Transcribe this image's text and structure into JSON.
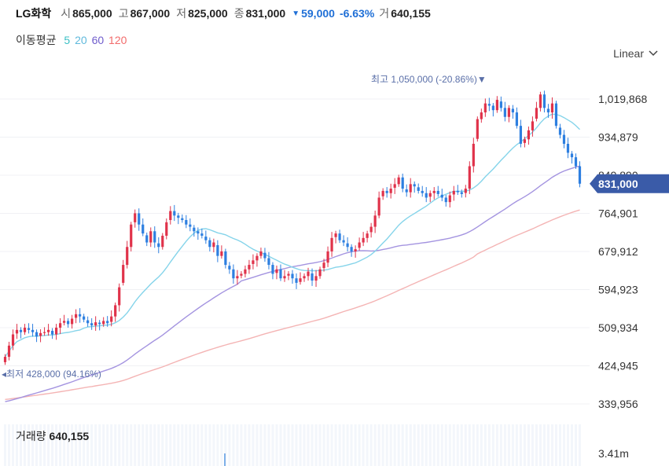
{
  "header": {
    "name": "LG화학",
    "open_label": "시",
    "open": "865,000",
    "high_label": "고",
    "high": "867,000",
    "low_label": "저",
    "low": "825,000",
    "close_label": "종",
    "close": "831,000",
    "change": "59,000",
    "change_pct": "-6.63%",
    "volume_label": "거",
    "volume": "640,155"
  },
  "ma_legend": {
    "label": "이동평균",
    "periods": [
      {
        "text": "5",
        "color": "#3cc0c5"
      },
      {
        "text": "20",
        "color": "#6ec6e6"
      },
      {
        "text": "60",
        "color": "#6f5ccc"
      },
      {
        "text": "120",
        "color": "#f26b6b"
      }
    ]
  },
  "scale_button": {
    "label": "Linear"
  },
  "volume_panel": {
    "label": "거래량",
    "value": "640,155",
    "axis_label": "3.41m"
  },
  "colors": {
    "up": "#e0324a",
    "down": "#2d7fe0",
    "ma5": "#3cc0c5",
    "ma20": "#85d4ea",
    "ma60": "#a494e0",
    "ma120": "#f4b4b4",
    "annotation": "#5a6fa8",
    "price_tag": "#3a5ba8"
  },
  "chart_data": {
    "type": "candlestick",
    "y_ticks": [
      "1,019,868",
      "934,879",
      "849,890",
      "764,901",
      "679,912",
      "594,923",
      "509,934",
      "424,945",
      "339,956"
    ],
    "y_tick_values": [
      1019868,
      934879,
      849890,
      764901,
      679912,
      594923,
      509934,
      424945,
      339956
    ],
    "max_annotation": "최고 1,050,000 (-20.86%)",
    "min_annotation": "최저 428,000 (94.16%)",
    "last_price": "831,000",
    "closes": [
      445000,
      470000,
      495000,
      505000,
      500000,
      510000,
      505000,
      500000,
      490000,
      498000,
      500000,
      505000,
      495000,
      510000,
      520000,
      525000,
      518000,
      530000,
      540000,
      535000,
      528000,
      520000,
      515000,
      522000,
      518000,
      525000,
      520000,
      535000,
      560000,
      600000,
      650000,
      690000,
      740000,
      765000,
      740000,
      720000,
      700000,
      725000,
      700000,
      690000,
      715000,
      745000,
      770000,
      760000,
      755000,
      750000,
      740000,
      735000,
      725000,
      720000,
      715000,
      705000,
      690000,
      700000,
      670000,
      680000,
      650000,
      640000,
      620000,
      625000,
      630000,
      640000,
      650000,
      660000,
      670000,
      680000,
      665000,
      650000,
      630000,
      640000,
      620000,
      625000,
      630000,
      620000,
      610000,
      620000,
      625000,
      635000,
      615000,
      625000,
      640000,
      655000,
      680000,
      710000,
      720000,
      705000,
      700000,
      690000,
      680000,
      685000,
      700000,
      710000,
      720000,
      735000,
      760000,
      800000,
      815000,
      810000,
      820000,
      830000,
      845000,
      820000,
      812000,
      830000,
      825000,
      815000,
      810000,
      800000,
      810000,
      815000,
      808000,
      800000,
      790000,
      805000,
      815000,
      812000,
      808000,
      820000,
      870000,
      920000,
      975000,
      990000,
      1010000,
      1005000,
      995000,
      1018000,
      1000000,
      980000,
      1000000,
      990000,
      960000,
      920000,
      930000,
      950000,
      970000,
      1000000,
      1030000,
      1000000,
      990000,
      1010000,
      960000,
      940000,
      920000,
      900000,
      890000,
      870000,
      831000
    ],
    "volume_axis_max": "3.41m",
    "volume_last": 640155
  }
}
